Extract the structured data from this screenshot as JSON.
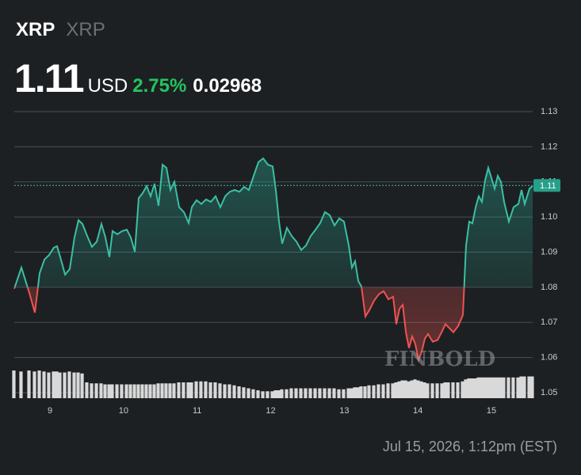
{
  "chart_data": {
    "type": "line",
    "title": "XRP",
    "subtitle": "XRP",
    "price": "1.11",
    "currency": "USD",
    "change_percent": "2.75%",
    "change_absolute": "0.02968",
    "watermark": "FINBOLD",
    "timestamp": "Jul 15, 2026, 1:12pm (EST)",
    "xlim": [
      8.515,
      15.56
    ],
    "xticks": [
      9,
      10,
      11,
      12,
      13,
      14,
      15
    ],
    "ylim": [
      1.05,
      1.13
    ],
    "yticks": [
      1.05,
      1.06,
      1.07,
      1.08,
      1.09,
      {
        "value": 1.1,
        "label": "1.10"
      },
      1.11,
      1.12,
      1.13
    ],
    "grid": true,
    "baseline": 1.08,
    "up_color": "#3bbfa4",
    "down_color": "#ef5350",
    "volume_color": "#d9d9d9",
    "price_marker": {
      "value": 1.109,
      "label": "1.11"
    },
    "x": [
      8.515,
      8.612,
      8.72,
      8.795,
      8.86,
      8.925,
      8.989,
      9.054,
      9.097,
      9.14,
      9.205,
      9.269,
      9.334,
      9.388,
      9.442,
      9.506,
      9.571,
      9.636,
      9.7,
      9.754,
      9.808,
      9.851,
      9.916,
      9.98,
      10.045,
      10.099,
      10.153,
      10.206,
      10.26,
      10.314,
      10.368,
      10.422,
      10.476,
      10.53,
      10.583,
      10.637,
      10.691,
      10.756,
      10.82,
      10.885,
      10.928,
      10.993,
      11.057,
      11.122,
      11.187,
      11.251,
      11.316,
      11.381,
      11.445,
      11.51,
      11.575,
      11.639,
      11.704,
      11.768,
      11.833,
      11.898,
      11.962,
      12.027,
      12.07,
      12.113,
      12.156,
      12.221,
      12.285,
      12.35,
      12.415,
      12.479,
      12.544,
      12.609,
      12.673,
      12.738,
      12.803,
      12.867,
      12.932,
      12.996,
      13.061,
      13.104,
      13.147,
      13.19,
      13.233,
      13.287,
      13.341,
      13.406,
      13.47,
      13.535,
      13.6,
      13.664,
      13.707,
      13.75,
      13.794,
      13.837,
      13.88,
      13.923,
      13.966,
      14.009,
      14.052,
      14.095,
      14.138,
      14.203,
      14.268,
      14.332,
      14.375,
      14.418,
      14.483,
      14.548,
      14.612,
      14.655,
      14.698,
      14.741,
      14.785,
      14.828,
      14.871,
      14.914,
      14.957,
      15.0,
      15.043,
      15.086,
      15.129,
      15.172,
      15.237,
      15.301,
      15.366,
      15.409,
      15.452,
      15.517,
      15.56
    ],
    "series": [
      {
        "name": "Price",
        "values": [
          1.0796,
          1.0856,
          1.0784,
          1.0728,
          1.084,
          1.0879,
          1.0892,
          1.0913,
          1.0917,
          1.0886,
          1.0836,
          1.0852,
          1.0942,
          1.0991,
          1.098,
          1.0946,
          1.0915,
          1.093,
          1.098,
          1.0942,
          1.0886,
          1.096,
          1.0951,
          1.096,
          1.0964,
          1.0942,
          1.0901,
          1.1054,
          1.1068,
          1.1088,
          1.1059,
          1.1095,
          1.1032,
          1.1149,
          1.114,
          1.1077,
          1.11,
          1.1028,
          1.1014,
          1.0983,
          1.1028,
          1.1048,
          1.1037,
          1.105,
          1.1043,
          1.1059,
          1.1028,
          1.1059,
          1.1072,
          1.1077,
          1.1072,
          1.1086,
          1.1077,
          1.1117,
          1.1156,
          1.1167,
          1.1149,
          1.1144,
          1.1077,
          1.0987,
          1.0924,
          1.0969,
          1.0946,
          1.093,
          1.0906,
          1.0919,
          1.0946,
          1.0964,
          1.0983,
          1.1014,
          1.1005,
          1.0976,
          1.0996,
          1.0987,
          1.0919,
          1.0856,
          1.0874,
          1.0818,
          1.0802,
          1.0717,
          1.0735,
          1.0762,
          1.078,
          1.0789,
          1.0766,
          1.0773,
          1.0695,
          1.0739,
          1.075,
          1.0672,
          1.0627,
          1.066,
          1.0638,
          1.0593,
          1.0616,
          1.0654,
          1.0667,
          1.0645,
          1.065,
          1.0676,
          1.0695,
          1.0686,
          1.0672,
          1.069,
          1.0721,
          1.0919,
          1.0987,
          1.0982,
          1.1028,
          1.1059,
          1.1043,
          1.1104,
          1.114,
          1.1111,
          1.1081,
          1.1117,
          1.11,
          1.1043,
          1.0987,
          1.1028,
          1.1037,
          1.1077,
          1.1037,
          1.1081,
          1.1088
        ]
      },
      {
        "name": "Volume",
        "values": [
          28,
          27,
          28,
          27,
          28,
          27,
          26,
          27,
          27,
          26,
          26,
          27,
          26,
          26,
          25,
          16,
          15,
          15,
          15,
          14,
          14,
          14,
          14,
          14,
          14,
          14,
          14,
          14,
          14,
          14,
          14,
          14,
          15,
          15,
          15,
          15,
          15,
          16,
          16,
          16,
          16,
          17,
          17,
          17,
          16,
          16,
          15,
          14,
          14,
          13,
          12,
          11,
          10,
          9,
          8,
          7,
          7,
          7,
          8,
          8,
          9,
          9,
          10,
          10,
          10,
          10,
          10,
          10,
          10,
          10,
          10,
          10,
          9,
          9,
          10,
          10,
          11,
          11,
          12,
          12,
          13,
          13,
          14,
          14,
          15,
          15,
          16,
          17,
          18,
          18,
          17,
          18,
          19,
          18,
          17,
          16,
          15,
          15,
          15,
          15,
          16,
          16,
          16,
          16,
          17,
          19,
          20,
          20,
          20,
          21,
          21,
          21,
          21,
          21,
          21,
          21,
          21,
          21,
          21,
          21,
          21,
          22,
          22,
          22,
          22
        ]
      }
    ]
  }
}
